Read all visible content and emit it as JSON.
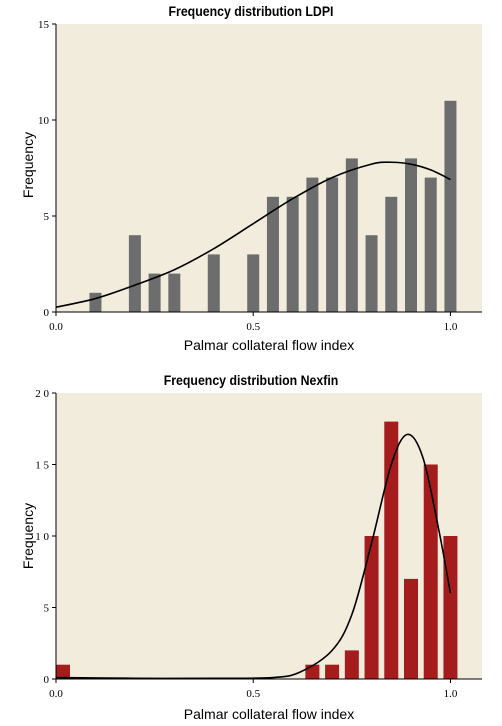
{
  "chart_data": [
    {
      "type": "bar",
      "title": "Frequency distribution LDPI",
      "xlabel": "Palmar collateral flow index",
      "ylabel": "Frequency",
      "xlim": [
        0.0,
        1.08
      ],
      "ylim": [
        0,
        15
      ],
      "x_ticks": [
        "0.0",
        "0.5",
        "1.0"
      ],
      "y_ticks": [
        "0",
        "5",
        "10",
        "15"
      ],
      "bar_color": "#6d6d6d",
      "background": "#f1ecdc",
      "bin_centers": [
        0.1,
        0.2,
        0.25,
        0.3,
        0.4,
        0.5,
        0.55,
        0.6,
        0.65,
        0.7,
        0.75,
        0.8,
        0.85,
        0.9,
        0.95,
        1.0
      ],
      "values": [
        1,
        4,
        2,
        2,
        3,
        3,
        6,
        6,
        7,
        7,
        8,
        4,
        6,
        8,
        7,
        11
      ],
      "fit_curve": {
        "x": [
          0.0,
          0.1,
          0.2,
          0.3,
          0.4,
          0.5,
          0.6,
          0.7,
          0.8,
          0.85,
          0.9,
          0.95,
          1.0
        ],
        "y": [
          0.25,
          0.7,
          1.4,
          2.2,
          3.3,
          4.6,
          5.9,
          7.0,
          7.7,
          7.8,
          7.7,
          7.4,
          6.9
        ]
      }
    },
    {
      "type": "bar",
      "title": "Frequency distribution Nexfin",
      "xlabel": "Palmar collateral flow index",
      "ylabel": "Frequency",
      "xlim": [
        0.0,
        1.08
      ],
      "ylim": [
        0,
        20
      ],
      "x_ticks": [
        "0.0",
        "0.5",
        "1.0"
      ],
      "y_ticks": [
        "0",
        "5",
        "1 0",
        "1 5",
        "2 0"
      ],
      "bar_color": "#a51c1c",
      "background": "#f1ecdc",
      "bin_centers": [
        0.0,
        0.65,
        0.7,
        0.75,
        0.8,
        0.85,
        0.9,
        0.95,
        1.0
      ],
      "values": [
        1,
        1,
        1,
        2,
        10,
        18,
        7,
        15,
        10
      ],
      "fit_curve": {
        "x": [
          0.0,
          0.2,
          0.4,
          0.55,
          0.62,
          0.7,
          0.75,
          0.8,
          0.85,
          0.89,
          0.93,
          0.97,
          1.0
        ],
        "y": [
          0.1,
          0.05,
          0.05,
          0.1,
          0.5,
          2.0,
          4.5,
          9.5,
          15.0,
          17.1,
          15.5,
          10.5,
          6.0
        ]
      }
    }
  ]
}
